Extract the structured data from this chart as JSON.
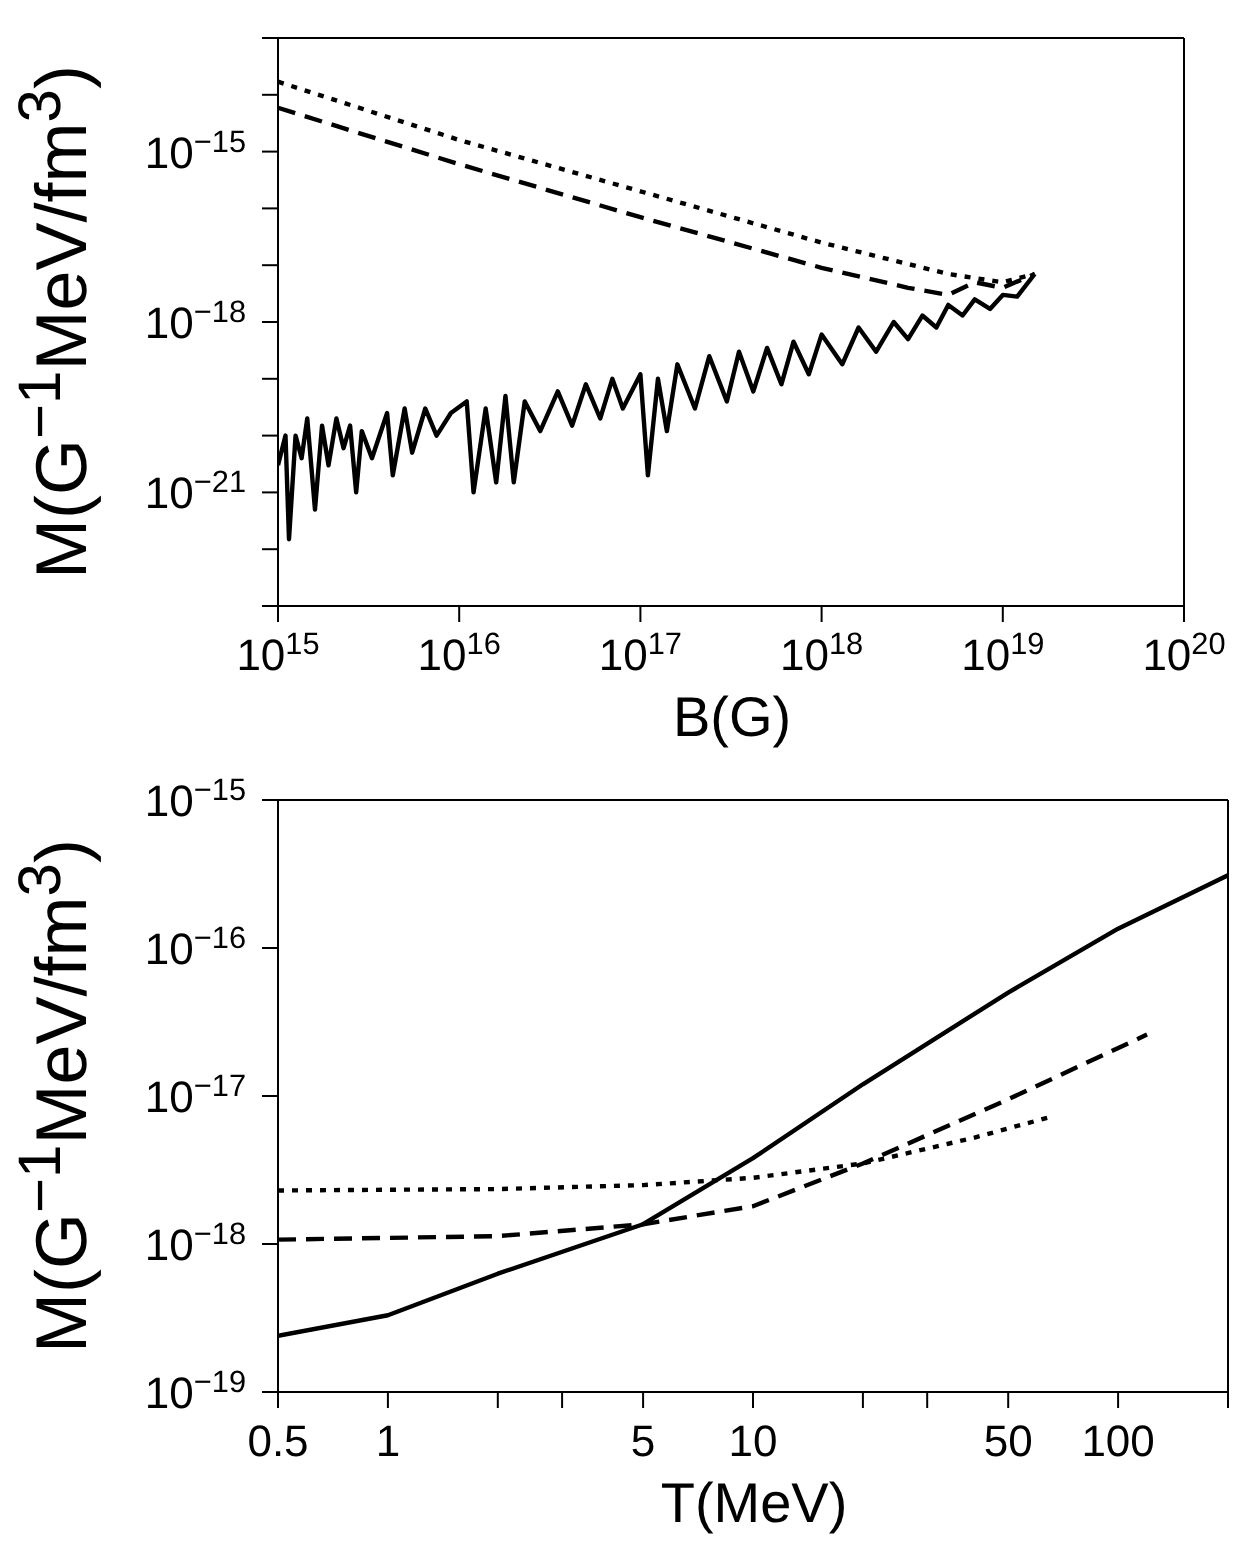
{
  "chart_data": [
    {
      "type": "line",
      "xlabel": "B(G)",
      "ylabel": "M(G$^{−1}$MeV/fm$^{3}$)",
      "log": "xy",
      "marker": "none",
      "xlim": [
        1000000000000000.0,
        1e+20
      ],
      "xticks": [
        {
          "value": 1000000000000000.0,
          "label": "10$^{15}$"
        },
        {
          "value": 1e+16,
          "label": "10$^{16}$"
        },
        {
          "value": 1e+17,
          "label": "10$^{17}$"
        },
        {
          "value": 1e+18,
          "label": "10$^{18}$"
        },
        {
          "value": 1e+19,
          "label": "10$^{19}$"
        },
        {
          "value": 1e+20,
          "label": "10$^{20}$"
        }
      ],
      "ylim": [
        1e-23,
        1e-13
      ],
      "yticks": [
        {
          "value": 1e-23,
          "label": null
        },
        {
          "value": 1e-22,
          "label": null
        },
        {
          "value": 1e-21,
          "label": "10$^{−21}$"
        },
        {
          "value": 1e-20,
          "label": null
        },
        {
          "value": 1e-19,
          "label": null
        },
        {
          "value": 1e-18,
          "label": "10$^{−18}$"
        },
        {
          "value": 1e-17,
          "label": null
        },
        {
          "value": 1e-16,
          "label": null
        },
        {
          "value": 1e-15,
          "label": "10$^{−15}$"
        },
        {
          "value": 1e-14,
          "label": null
        },
        {
          "value": 1e-13,
          "label": null
        }
      ],
      "series": [
        {
          "color": "#000000",
          "line_style": "solid",
          "x": [
            1000000000000000.0,
            1100000000000000.0,
            1150000000000000.0,
            1250000000000000.0,
            1350000000000000.0,
            1450000000000000.0,
            1600000000000000.0,
            1750000000000000.0,
            1900000000000000.0,
            2100000000000000.0,
            2300000000000000.0,
            2500000000000000.0,
            2700000000000000.0,
            2900000000000000.0,
            3300000000000000.0,
            4000000000000000.0,
            4300000000000000.0,
            5000000000000000.0,
            5500000000000000.0,
            6500000000000000.0,
            7500000000000000.0,
            9000000000000000.0,
            1.1e+16,
            1.2e+16,
            1.4e+16,
            1.6e+16,
            1.8e+16,
            2e+16,
            2.3e+16,
            2.8e+16,
            3.5e+16,
            4.2e+16,
            5e+16,
            6e+16,
            7e+16,
            8e+16,
            1e+17,
            1.1e+17,
            1.25e+17,
            1.4e+17,
            1.6e+17,
            2e+17,
            2.4e+17,
            3e+17,
            3.5e+17,
            4.2e+17,
            5e+17,
            6e+17,
            7e+17,
            8.5e+17,
            1e+18,
            1.3e+18,
            1.6e+18,
            2e+18,
            2.5e+18,
            3e+18,
            3.6e+18,
            4.3e+18,
            5e+18,
            6e+18,
            7e+18,
            8.5e+18,
            1e+19,
            1.2e+19,
            1.5e+19
          ],
          "values": [
            3e-21,
            1e-20,
            1.5e-22,
            1e-20,
            4e-21,
            2e-20,
            5e-22,
            1.5e-20,
            3e-21,
            2e-20,
            6e-21,
            1.5e-20,
            1e-21,
            1.2e-20,
            4e-21,
            2.5e-20,
            2e-21,
            3e-20,
            5e-21,
            3e-20,
            1e-20,
            2.5e-20,
            4e-20,
            1e-21,
            3e-20,
            1.5e-21,
            5e-20,
            1.5e-21,
            4e-20,
            1.2e-20,
            6e-20,
            1.5e-20,
            8e-20,
            2e-20,
            1e-19,
            3e-20,
            1.2e-19,
            2e-21,
            1e-19,
            1.2e-20,
            1.8e-19,
            3e-20,
            2.5e-19,
            4e-20,
            3e-19,
            6e-20,
            3.5e-19,
            8e-20,
            4.5e-19,
            1.2e-19,
            6e-19,
            1.8e-19,
            8e-19,
            3e-19,
            1e-18,
            5e-19,
            1.3e-18,
            8e-19,
            2e-18,
            1.3e-18,
            2.5e-18,
            1.7e-18,
            3e-18,
            2.8e-18,
            7e-18
          ]
        },
        {
          "color": "#000000",
          "line_style": "dashed",
          "x": [
            1000000000000000.0,
            1e+16,
            1e+17,
            1e+18,
            3e+18,
            5e+18,
            7e+18,
            1e+19,
            1.5e+19
          ],
          "values": [
            5.9e-15,
            6e-16,
            7e-17,
            9e-18,
            4e-18,
            3e-18,
            5e-18,
            4e-18,
            7e-18
          ]
        },
        {
          "color": "#000000",
          "line_style": "dotted",
          "x": [
            1000000000000000.0,
            1e+16,
            1e+17,
            1e+18,
            5e+18,
            1e+19,
            1.5e+19
          ],
          "values": [
            1.7e-14,
            1.6e-15,
            2e-16,
            2.5e-17,
            7e-18,
            5e-18,
            7e-18
          ]
        }
      ]
    },
    {
      "type": "line",
      "xlabel": "T(MeV)",
      "ylabel": "M(G$^{−1}$MeV/fm$^{3}$)",
      "log": "xy",
      "marker": "none",
      "xlim": [
        0.5,
        200
      ],
      "xticks": [
        0.5,
        1,
        {
          "value": 2,
          "label": null
        },
        {
          "value": 3,
          "label": null
        },
        5,
        10,
        {
          "value": 20,
          "label": null
        },
        {
          "value": 30,
          "label": null
        },
        50,
        100,
        {
          "value": 200,
          "label": null
        }
      ],
      "ylim": [
        1e-19,
        1e-15
      ],
      "yticks": [
        {
          "value": 1e-19,
          "label": "10$^{−19}$"
        },
        {
          "value": 1e-18,
          "label": "10$^{−18}$"
        },
        {
          "value": 1e-17,
          "label": "10$^{−17}$"
        },
        {
          "value": 1e-16,
          "label": "10$^{−16}$"
        },
        {
          "value": 1e-15,
          "label": "10$^{−15}$"
        }
      ],
      "series": [
        {
          "color": "#000000",
          "line_style": "solid",
          "x": [
            0.5,
            1,
            2,
            5,
            10,
            20,
            50,
            100,
            200
          ],
          "values": [
            2.4e-19,
            3.3e-19,
            6.3e-19,
            1.36e-18,
            3.8e-18,
            1.2e-17,
            5e-17,
            1.35e-16,
            3.1e-16
          ]
        },
        {
          "color": "#000000",
          "line_style": "dashed",
          "x": [
            0.5,
            2,
            5,
            10,
            20,
            50,
            120
          ],
          "values": [
            1.07e-18,
            1.13e-18,
            1.36e-18,
            1.8e-18,
            3.5e-18,
            9.5e-18,
            2.6e-17
          ]
        },
        {
          "color": "#000000",
          "line_style": "dotted",
          "x": [
            0.5,
            2,
            5,
            10,
            20,
            40,
            65
          ],
          "values": [
            2.3e-18,
            2.35e-18,
            2.5e-18,
            2.8e-18,
            3.5e-18,
            5.2e-18,
            7.2e-18
          ]
        }
      ]
    }
  ]
}
